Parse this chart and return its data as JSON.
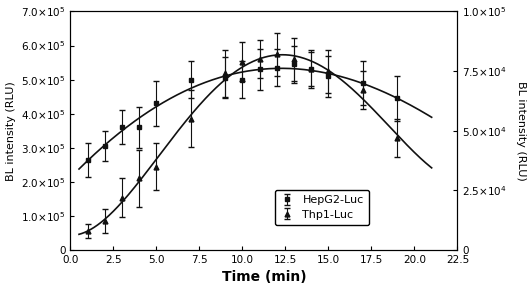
{
  "hepg2_x": [
    1,
    2,
    3,
    4,
    5,
    7,
    9,
    10,
    11,
    12,
    13,
    14,
    15,
    17,
    19
  ],
  "hepg2_y": [
    265000,
    305000,
    360000,
    360000,
    430000,
    500000,
    505000,
    500000,
    530000,
    535000,
    545000,
    530000,
    510000,
    490000,
    445000
  ],
  "hepg2_yerr": [
    50000,
    45000,
    50000,
    60000,
    65000,
    55000,
    60000,
    55000,
    60000,
    55000,
    55000,
    50000,
    60000,
    65000,
    65000
  ],
  "thp1_x": [
    1,
    2,
    3,
    4,
    5,
    7,
    9,
    10,
    11,
    12,
    13,
    14,
    15,
    17,
    19
  ],
  "thp1_y": [
    8000,
    12000,
    22000,
    30000,
    35000,
    55000,
    74000,
    79000,
    80000,
    82000,
    80000,
    76000,
    75000,
    67000,
    47000
  ],
  "thp1_yerr": [
    3000,
    5000,
    8000,
    12000,
    10000,
    12000,
    10000,
    8000,
    8000,
    9000,
    9000,
    8000,
    9000,
    8000,
    8000
  ],
  "left_ylabel": "BL intensity (RLU)",
  "right_ylabel": "BL intensity (RLU)",
  "xlabel": "Time (min)",
  "left_ylim": [
    0,
    700000
  ],
  "right_ylim": [
    0,
    100000
  ],
  "xlim": [
    0.0,
    22.5
  ],
  "xticks": [
    0.0,
    2.5,
    5.0,
    7.5,
    10.0,
    12.5,
    15.0,
    17.5,
    20.0,
    22.5
  ],
  "left_yticks": [
    0,
    100000,
    200000,
    300000,
    400000,
    500000,
    600000,
    700000
  ],
  "right_yticks": [
    0,
    25000,
    50000,
    75000,
    100000
  ],
  "legend_labels": [
    "HepG2-Luc",
    "Thp1-Luc"
  ],
  "color_hepg2": "#111111",
  "color_thp1": "#111111",
  "background_color": "#ffffff"
}
